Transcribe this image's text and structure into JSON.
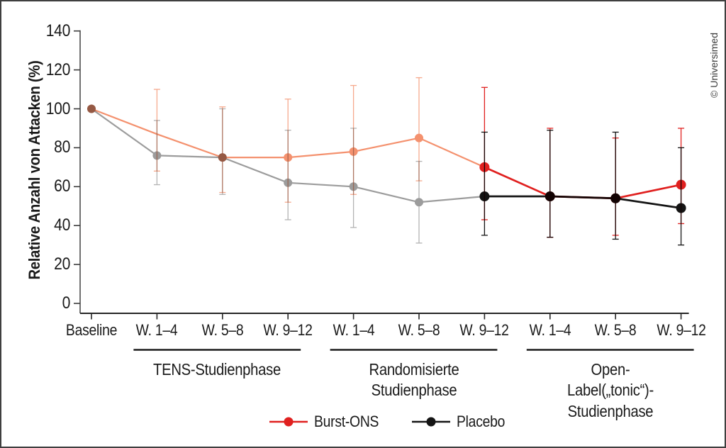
{
  "copyright": "© Universimed",
  "chart_data": {
    "type": "line",
    "title": "",
    "xlabel": "",
    "ylabel": "Relative Anzahl von Attacken (%)",
    "ylim": [
      0,
      140
    ],
    "yticks": [
      0,
      20,
      40,
      60,
      80,
      100,
      120,
      140
    ],
    "grid": false,
    "legend_position": "bottom",
    "error_bars": true,
    "categories": [
      "Baseline",
      "W. 1–4",
      "W. 5–8",
      "W. 9–12",
      "W. 1–4",
      "W. 5–8",
      "W. 9–12",
      "W. 1–4",
      "W. 5–8",
      "W. 9–12"
    ],
    "phases": [
      {
        "label": "TENS-Studienphase",
        "from": 1,
        "to": 3
      },
      {
        "label": "Randomisierte\nStudienphase",
        "from": 4,
        "to": 6
      },
      {
        "label": "Open-Label(„tonic“)-\nStudienphase",
        "from": 7,
        "to": 9
      }
    ],
    "series": [
      {
        "name": "Burst-ONS",
        "color": "#e0201f",
        "color_faded": "#f4916e",
        "color_errorbar_faded": "#f6a98d",
        "active_from": 6,
        "points": [
          {
            "v": 100
          },
          {
            "v": 87,
            "lo": 68,
            "hi": 110,
            "dot": false
          },
          {
            "v": 75,
            "lo": 57,
            "hi": 101
          },
          {
            "v": 75,
            "lo": 52,
            "hi": 105
          },
          {
            "v": 78,
            "lo": 56,
            "hi": 112
          },
          {
            "v": 85,
            "lo": 63,
            "hi": 116
          },
          {
            "v": 70,
            "lo": 43,
            "hi": 111
          },
          {
            "v": 55,
            "lo": 34,
            "hi": 90
          },
          {
            "v": 54,
            "lo": 35,
            "hi": 85
          },
          {
            "v": 61,
            "lo": 41,
            "hi": 90
          }
        ]
      },
      {
        "name": "Placebo",
        "color": "#141414",
        "color_faded": "#9c9c9c",
        "color_errorbar_faded": "#b3b3b3",
        "active_from": 6,
        "points": [
          {
            "v": 100
          },
          {
            "v": 76,
            "lo": 61,
            "hi": 94
          },
          {
            "v": 75,
            "lo": 56,
            "hi": 100
          },
          {
            "v": 62,
            "lo": 43,
            "hi": 89
          },
          {
            "v": 60,
            "lo": 39,
            "hi": 90
          },
          {
            "v": 52,
            "lo": 31,
            "hi": 73
          },
          {
            "v": 55,
            "lo": 35,
            "hi": 88
          },
          {
            "v": 55,
            "lo": 34,
            "hi": 89
          },
          {
            "v": 54,
            "lo": 33,
            "hi": 88
          },
          {
            "v": 49,
            "lo": 30,
            "hi": 80
          }
        ]
      }
    ]
  }
}
